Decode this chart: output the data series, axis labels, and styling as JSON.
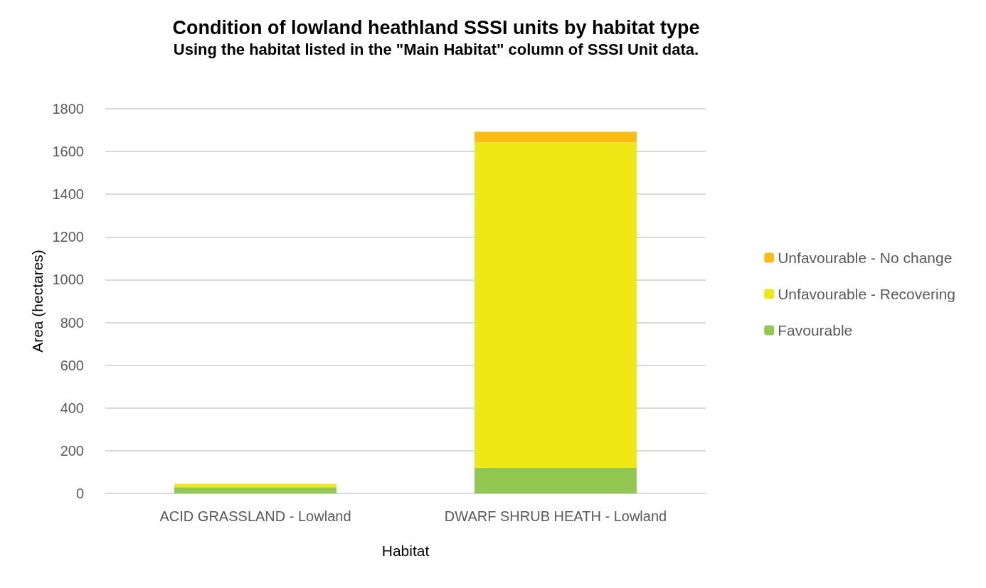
{
  "chart_data": {
    "type": "bar",
    "stacked": true,
    "title": "Condition of lowland heathland SSSI units by habitat type",
    "subtitle": "Using the habitat listed in the \"Main Habitat\" column of SSSI Unit data.",
    "xlabel": "Habitat",
    "ylabel": "Area (hectares)",
    "categories": [
      "ACID GRASSLAND - Lowland",
      "DWARF SHRUB HEATH - Lowland"
    ],
    "series": [
      {
        "name": "Favourable",
        "color": "#92c852",
        "values": [
          29,
          120
        ]
      },
      {
        "name": "Unfavourable - Recovering",
        "color": "#f0e816",
        "values": [
          16,
          1522
        ]
      },
      {
        "name": "Unfavourable - No change",
        "color": "#fbbd14",
        "values": [
          null,
          51
        ]
      }
    ],
    "ylim": [
      0,
      1800
    ],
    "yticks": [
      0,
      200,
      400,
      600,
      800,
      1000,
      1200,
      1400,
      1600,
      1800
    ],
    "grid": "y",
    "legend": "right"
  }
}
